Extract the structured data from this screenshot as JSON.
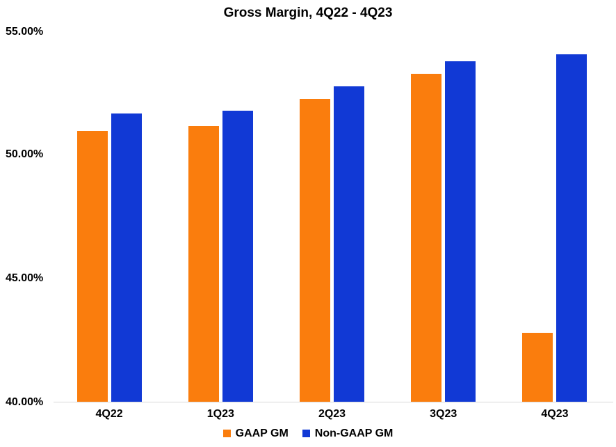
{
  "chart_data": {
    "type": "bar",
    "title": "Gross Margin, 4Q22 - 4Q23",
    "categories": [
      "4Q22",
      "1Q23",
      "2Q23",
      "3Q23",
      "4Q23"
    ],
    "series": [
      {
        "name": "GAAP GM",
        "color": "#FA7D0D",
        "values": [
          51.0,
          51.2,
          52.3,
          53.3,
          42.8
        ]
      },
      {
        "name": "Non-GAAP GM",
        "color": "#1139D5",
        "values": [
          51.7,
          51.8,
          52.8,
          53.8,
          54.1
        ]
      }
    ],
    "ylabel": "",
    "xlabel": "",
    "ylim": [
      40,
      55
    ],
    "yticks": [
      "55.00%",
      "50.00%",
      "45.00%",
      "40.00%"
    ],
    "grid": false,
    "legend_position": "bottom",
    "axis_line_color": "#D9D9D9",
    "background_color": "#FFFFFF",
    "text_color": "#000000"
  }
}
